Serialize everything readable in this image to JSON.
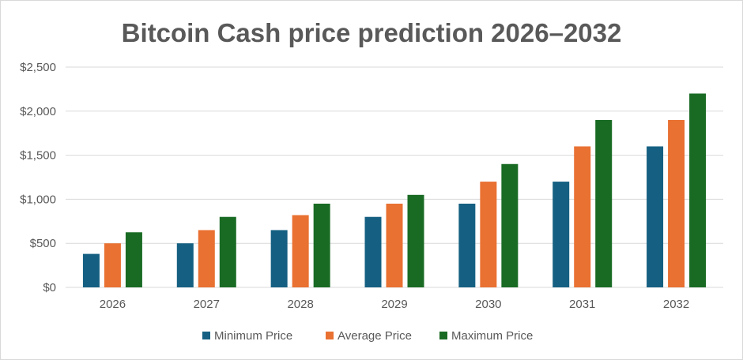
{
  "chart_data": {
    "type": "bar",
    "title": "Bitcoin Cash price prediction 2026–2032",
    "xlabel": "",
    "ylabel": "",
    "categories": [
      "2026",
      "2027",
      "2028",
      "2029",
      "2030",
      "2031",
      "2032"
    ],
    "series": [
      {
        "name": "Minimum Price",
        "color": "#156082",
        "values": [
          380,
          500,
          650,
          800,
          950,
          1200,
          1600
        ]
      },
      {
        "name": "Average Price",
        "color": "#E97132",
        "values": [
          500,
          650,
          820,
          950,
          1200,
          1600,
          1900
        ]
      },
      {
        "name": "Maximum Price",
        "color": "#196B24",
        "values": [
          625,
          800,
          950,
          1050,
          1400,
          1900,
          2200
        ]
      }
    ],
    "ylim": [
      0,
      2500
    ],
    "yticks": [
      0,
      500,
      1000,
      1500,
      2000,
      2500
    ],
    "ytick_labels": [
      "$0",
      "$500",
      "$1,000",
      "$1,500",
      "$2,000",
      "$2,500"
    ],
    "grid": true,
    "legend_position": "bottom"
  }
}
